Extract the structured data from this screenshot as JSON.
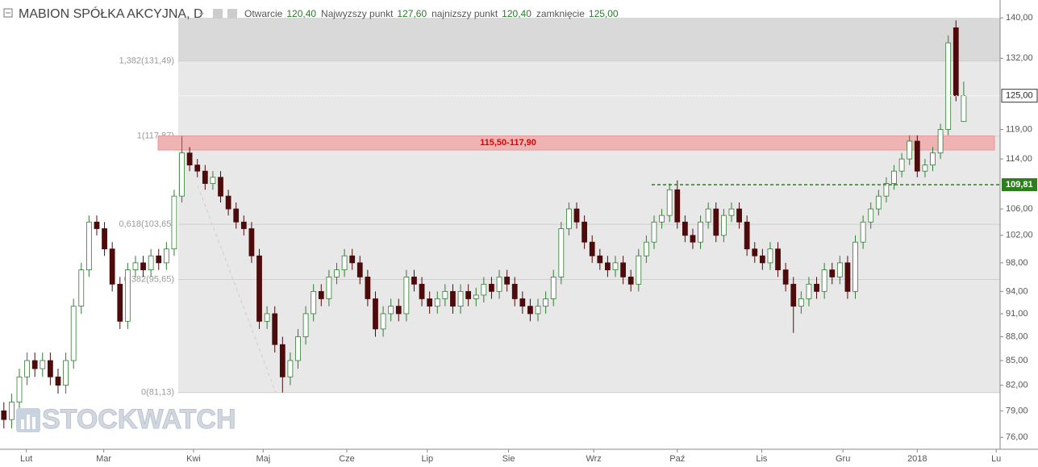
{
  "chart_data": {
    "type": "candlestick",
    "title": "MABION SPÓŁKA AKCYJNA, D",
    "header": [
      {
        "label": "Otwarcie",
        "text": "120,40"
      },
      {
        "label": "Najwyzszy punkt",
        "text": "127,60"
      },
      {
        "label": "najnizszy punkt",
        "text": "120,40"
      },
      {
        "label": "zamknięcie",
        "text": "125,00"
      }
    ],
    "open": [
      79,
      78,
      80,
      83,
      85,
      84,
      85,
      83,
      82,
      85,
      92,
      97,
      104,
      103,
      100,
      95,
      90,
      97,
      98,
      97,
      99,
      98,
      100,
      108,
      115,
      113,
      112,
      110,
      111,
      108,
      106,
      104,
      103,
      99,
      90,
      91,
      87,
      83,
      85,
      88,
      91,
      94,
      93,
      96,
      97,
      99,
      98,
      96,
      93,
      89,
      91,
      92,
      91,
      96,
      95,
      93,
      92,
      93,
      94,
      92,
      94,
      93,
      93.5,
      95,
      94,
      96,
      95,
      93,
      92,
      91,
      92,
      93,
      96,
      103,
      106,
      104,
      101,
      99,
      98,
      97,
      98,
      96,
      95,
      99,
      101,
      104,
      105,
      109,
      104,
      102,
      101,
      104,
      106,
      102,
      105,
      106,
      104,
      100,
      99,
      98,
      100,
      97,
      95,
      92,
      93,
      95,
      94,
      97,
      96,
      98,
      94,
      101,
      104,
      106,
      108,
      110,
      112,
      114,
      117,
      112,
      113,
      115,
      119,
      138,
      120.4
    ],
    "high": [
      80,
      81,
      84,
      86,
      86,
      86,
      86,
      84,
      86,
      93,
      98,
      105,
      105,
      104,
      101,
      96,
      98,
      99,
      99,
      100,
      100,
      101,
      109,
      117.87,
      116,
      114,
      113,
      112,
      112,
      109,
      107,
      105,
      104,
      100,
      92,
      92,
      88,
      86,
      89,
      92,
      95,
      95,
      97,
      98,
      100,
      100,
      99,
      97,
      94,
      92,
      93,
      93,
      97,
      97,
      96,
      94,
      94,
      95,
      95,
      95,
      95,
      94.5,
      96,
      96,
      97,
      97,
      96,
      94,
      93,
      93,
      94,
      97,
      104,
      107,
      107,
      105,
      102,
      100,
      99,
      99,
      99,
      97,
      100,
      102,
      105,
      106,
      110,
      110.5,
      105,
      103,
      105,
      107,
      107,
      106,
      107,
      107,
      105,
      101,
      100,
      101,
      101,
      98,
      96,
      94,
      96,
      96,
      98,
      98,
      99,
      99,
      102,
      105,
      107,
      109,
      111,
      113,
      115,
      118,
      118,
      114,
      116,
      120,
      136.5,
      139.5,
      127.6
    ],
    "low": [
      77,
      77,
      79,
      82,
      83,
      83,
      82,
      81,
      81,
      84,
      91,
      96,
      102,
      99,
      94,
      89,
      89,
      96,
      96,
      96,
      97,
      97,
      99,
      107,
      112,
      111,
      109,
      109,
      107,
      105,
      103,
      102,
      98,
      89,
      89,
      86,
      81.13,
      82,
      84,
      87,
      90,
      92,
      92,
      95,
      96,
      97,
      95,
      92,
      88,
      88,
      90,
      90,
      90,
      94,
      92,
      91,
      91,
      92,
      91,
      91,
      92,
      92,
      92.5,
      93,
      93,
      94,
      92,
      91,
      90,
      90,
      91,
      92,
      95,
      102,
      103,
      100,
      98,
      97,
      96,
      96,
      95,
      94,
      94,
      98,
      100,
      103,
      104,
      103,
      101,
      100,
      100,
      103,
      101,
      101,
      104,
      103,
      99,
      98,
      97,
      97,
      96,
      94,
      88.5,
      91,
      92,
      93,
      93,
      95,
      95,
      93,
      93,
      100,
      103,
      105,
      107,
      109,
      111,
      113,
      111,
      111,
      112,
      114,
      118,
      124,
      120.4
    ],
    "close": [
      78,
      80,
      83,
      85,
      84,
      85,
      83,
      82,
      85,
      92,
      97,
      104,
      103,
      100,
      95,
      90,
      97,
      98,
      97,
      99,
      98,
      100,
      108,
      115,
      113,
      112,
      110,
      111,
      108,
      106,
      104,
      103,
      99,
      90,
      91,
      87,
      83,
      85,
      88,
      91,
      94,
      93,
      96,
      97,
      99,
      98,
      96,
      93,
      89,
      91,
      92,
      91,
      96,
      95,
      93,
      92,
      93,
      94,
      92,
      94,
      93,
      93.5,
      95,
      94,
      96,
      95,
      93,
      92,
      91,
      92,
      93,
      96,
      103,
      106,
      104,
      101,
      99,
      98,
      97,
      98,
      96,
      95,
      99,
      101,
      104,
      105,
      109,
      104,
      102,
      101,
      104,
      106,
      102,
      105,
      106,
      104,
      100,
      99,
      98,
      100,
      97,
      95,
      92,
      93,
      95,
      94,
      97,
      96,
      98,
      94,
      101,
      104,
      106,
      108,
      110,
      112,
      114,
      117,
      112,
      113,
      115,
      119,
      135,
      125,
      125
    ],
    "up_color": "#2f7d32",
    "down_color": "#4d0b0b",
    "xlim": [
      -0.5,
      128.7
    ],
    "xticks": [
      {
        "value": 2.9,
        "label": "Lut"
      },
      {
        "value": 12.9,
        "label": "Mar"
      },
      {
        "value": 24.5,
        "label": "Kwi"
      },
      {
        "value": 33.5,
        "label": "Maj"
      },
      {
        "value": 44.3,
        "label": "Cze"
      },
      {
        "value": 54.7,
        "label": "Lip"
      },
      {
        "value": 65.2,
        "label": "Sie"
      },
      {
        "value": 76.2,
        "label": "Wrz"
      },
      {
        "value": 87,
        "label": "Paź"
      },
      {
        "value": 97.9,
        "label": "Lis"
      },
      {
        "value": 108.4,
        "label": "Gru"
      },
      {
        "value": 118,
        "label": "2018"
      },
      {
        "value": 128.2,
        "label": "Lu"
      }
    ],
    "ylim": [
      74.7,
      143.7
    ],
    "log_scale": true,
    "yticks": [
      {
        "value": 140,
        "label": "140,00"
      },
      {
        "value": 132,
        "label": "132,00"
      },
      {
        "value": 119,
        "label": "119,00"
      },
      {
        "value": 114,
        "label": "114,00"
      },
      {
        "value": 106,
        "label": "106,00"
      },
      {
        "value": 102,
        "label": "102,00"
      },
      {
        "value": 98,
        "label": "98,00"
      },
      {
        "value": 94,
        "label": "94,00"
      },
      {
        "value": 91,
        "label": "91,00"
      },
      {
        "value": 88,
        "label": "88,00"
      },
      {
        "value": 85,
        "label": "85,00"
      },
      {
        "value": 82,
        "label": "82,00"
      },
      {
        "value": 79,
        "label": "79,00"
      },
      {
        "value": 76,
        "label": "76,00"
      }
    ],
    "fib_levels": [
      {
        "value": 131.49,
        "label": "1,382(131,49)"
      },
      {
        "value": 117.87,
        "label": "1(117,87)"
      },
      {
        "value": 103.65,
        "label": "0,618(103,65)"
      },
      {
        "value": 95.65,
        "label": "0,382(95,65)"
      },
      {
        "value": 81.13,
        "label": "0(81,13)"
      }
    ],
    "zone": {
      "range": [
        115.5,
        117.9
      ],
      "label": "115,50-117,90",
      "color": "#f0b3b3"
    },
    "support": {
      "value": 109.81,
      "label": "109,81",
      "color": "#2e7d1e"
    },
    "last_price": {
      "value": 125,
      "label": "125,00"
    },
    "watermark": "STOCKWATCH"
  }
}
